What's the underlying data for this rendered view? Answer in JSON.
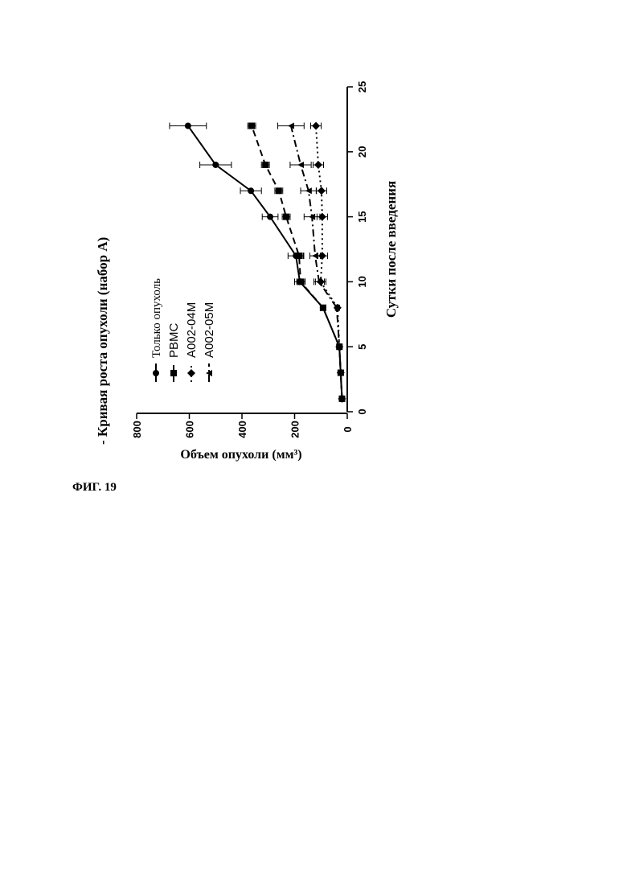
{
  "figure_label": "ФИГ. 19",
  "chart_data": {
    "type": "line",
    "title": "- Кривая роста опухоли (набор A)",
    "xlabel": "Сутки после введения",
    "ylabel": "Объем опухоли (мм³)",
    "x": [
      1,
      3,
      5,
      8,
      10,
      12,
      15,
      17,
      19,
      22
    ],
    "xlim": [
      0,
      25
    ],
    "xticks": [
      0,
      5,
      10,
      15,
      20,
      25
    ],
    "ylim": [
      0,
      800
    ],
    "yticks": [
      0,
      200,
      400,
      600,
      800
    ],
    "series": [
      {
        "name": "Только опухоль",
        "color": "#000000",
        "marker": "circle",
        "dash": "none",
        "values": [
          20,
          25,
          30,
          92,
          180,
          195,
          293,
          366,
          500,
          605
        ],
        "errors": [
          5,
          5,
          5,
          10,
          20,
          30,
          30,
          40,
          60,
          70
        ]
      },
      {
        "name": "PBMC",
        "color": "#000000",
        "marker": "square",
        "dash": "8,5",
        "values": [
          20,
          25,
          30,
          92,
          177,
          183,
          232,
          260,
          311,
          363
        ],
        "errors": [
          5,
          5,
          5,
          10,
          15,
          15,
          15,
          15,
          15,
          15
        ]
      },
      {
        "name": "A002-04M",
        "color": "#000000",
        "marker": "diamond",
        "dash": "2,4",
        "values": [
          20,
          25,
          30,
          37,
          101,
          95,
          95,
          98,
          110,
          119
        ],
        "errors": [
          5,
          5,
          5,
          5,
          20,
          20,
          20,
          20,
          20,
          20
        ]
      },
      {
        "name": "A002-05M",
        "color": "#000000",
        "marker": "triangle",
        "dash": "9,4,2,4",
        "values": [
          20,
          25,
          30,
          40,
          107,
          122,
          134,
          147,
          177,
          214
        ],
        "errors": [
          5,
          5,
          5,
          5,
          20,
          20,
          30,
          30,
          40,
          50
        ]
      }
    ]
  }
}
